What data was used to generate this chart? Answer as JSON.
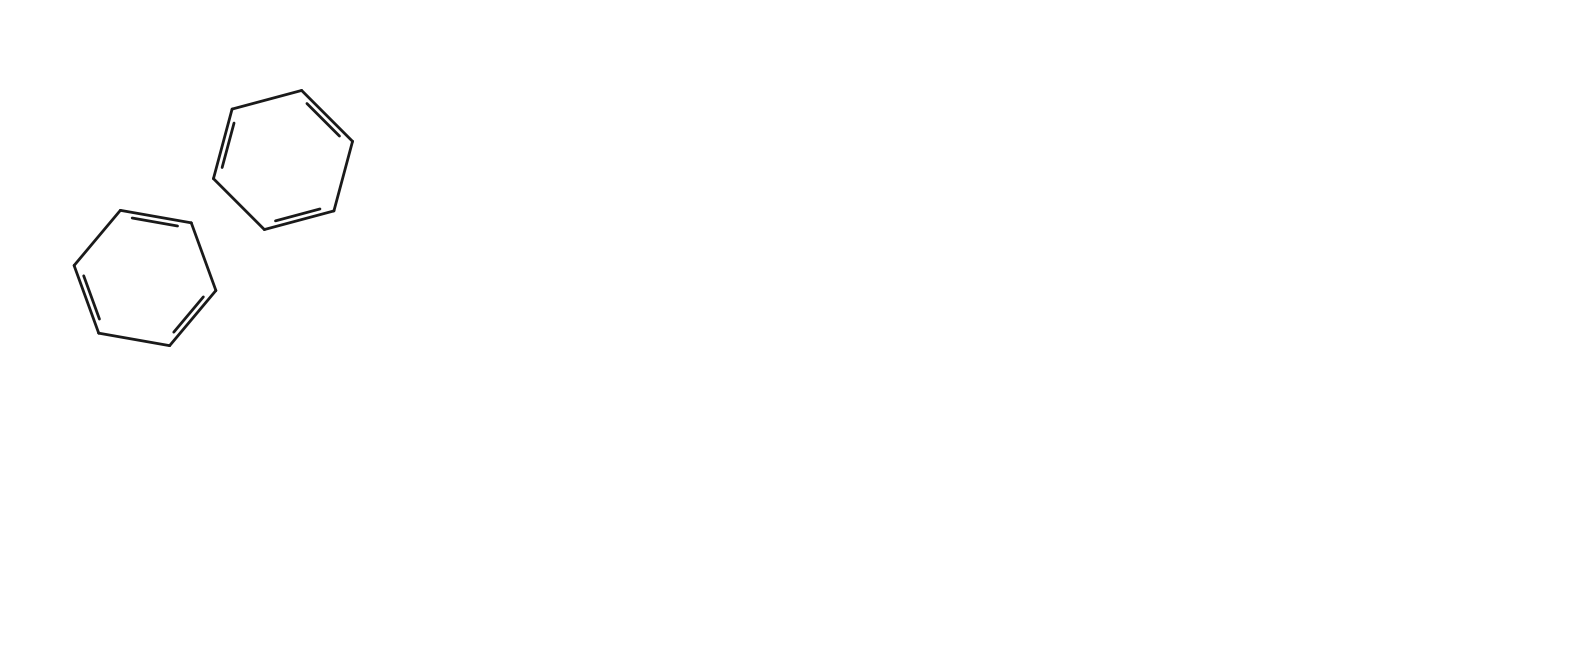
{
  "figsize": [
    15.82,
    6.48
  ],
  "dpi": 100,
  "bg": "#ffffff",
  "lw": 2.0,
  "color": "#1a1a1a",
  "font_size": 14
}
